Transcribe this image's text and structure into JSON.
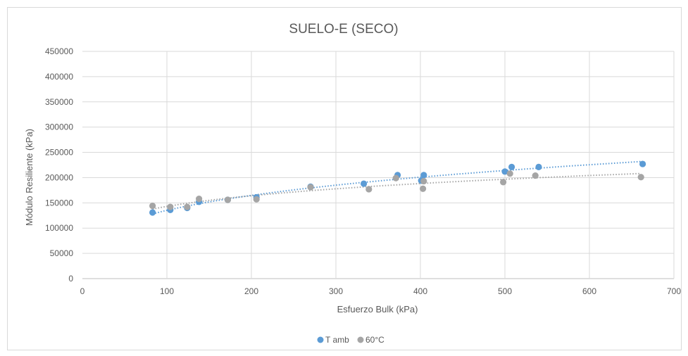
{
  "chart_data": {
    "type": "scatter",
    "title": "SUELO-E (SECO)",
    "xlabel": "Esfuerzo Bulk (kPa)",
    "ylabel": "Módulo Resiliente (kPa)",
    "xlim": [
      0,
      700
    ],
    "ylim": [
      0,
      450000
    ],
    "xticks": [
      "0",
      "100",
      "200",
      "300",
      "400",
      "500",
      "600",
      "700"
    ],
    "yticks": [
      "0",
      "50000",
      "100000",
      "150000",
      "200000",
      "250000",
      "300000",
      "350000",
      "400000",
      "450000"
    ],
    "grid": true,
    "legend_position": "bottom",
    "series": [
      {
        "name": "T amb",
        "color": "#5b9bd5",
        "trendline": "power",
        "points": [
          [
            83,
            131000
          ],
          [
            104,
            136000
          ],
          [
            124,
            140000
          ],
          [
            138,
            152000
          ],
          [
            172,
            156000
          ],
          [
            206,
            161000
          ],
          [
            270,
            182000
          ],
          [
            333,
            188000
          ],
          [
            373,
            205000
          ],
          [
            401,
            194000
          ],
          [
            404,
            205000
          ],
          [
            500,
            212000
          ],
          [
            508,
            221000
          ],
          [
            540,
            221000
          ],
          [
            663,
            227000
          ]
        ]
      },
      {
        "name": "60°C",
        "color": "#a5a5a5",
        "trendline": "power",
        "points": [
          [
            83,
            144000
          ],
          [
            104,
            142000
          ],
          [
            124,
            142000
          ],
          [
            138,
            158000
          ],
          [
            172,
            156000
          ],
          [
            206,
            157000
          ],
          [
            270,
            181000
          ],
          [
            339,
            177000
          ],
          [
            371,
            199000
          ],
          [
            403,
            178000
          ],
          [
            404,
            193000
          ],
          [
            498,
            191000
          ],
          [
            506,
            208000
          ],
          [
            536,
            204000
          ],
          [
            661,
            201000
          ]
        ]
      }
    ]
  }
}
